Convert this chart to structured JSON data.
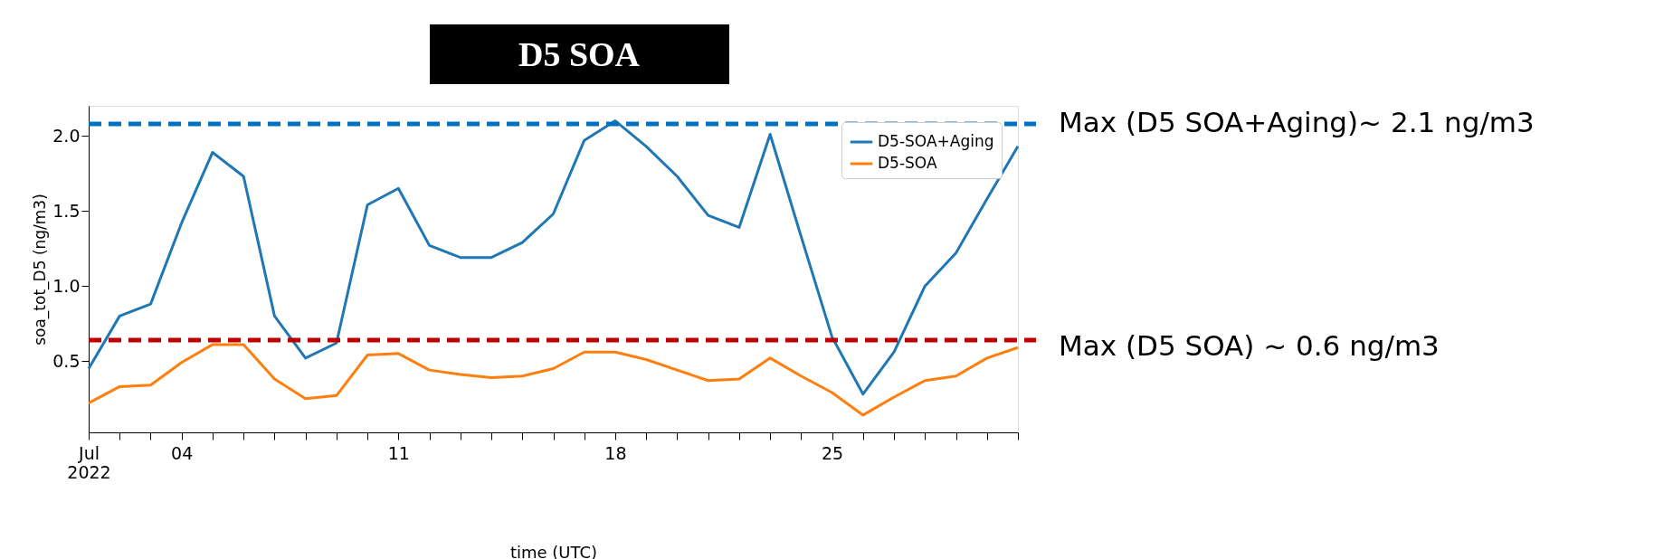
{
  "chart_data": {
    "type": "line",
    "title": "D5 SOA",
    "xlabel": "time (UTC)",
    "ylabel": "soa_tot_D5 (ng/m3)",
    "x": [
      "2022-07-01",
      "2022-07-02",
      "2022-07-03",
      "2022-07-04",
      "2022-07-05",
      "2022-07-06",
      "2022-07-07",
      "2022-07-08",
      "2022-07-09",
      "2022-07-10",
      "2022-07-11",
      "2022-07-12",
      "2022-07-13",
      "2022-07-14",
      "2022-07-15",
      "2022-07-16",
      "2022-07-17",
      "2022-07-18",
      "2022-07-19",
      "2022-07-20",
      "2022-07-21",
      "2022-07-22",
      "2022-07-23",
      "2022-07-24",
      "2022-07-25",
      "2022-07-26",
      "2022-07-27",
      "2022-07-28",
      "2022-07-29",
      "2022-07-30",
      "2022-07-31"
    ],
    "series": [
      {
        "name": "D5-SOA+Aging",
        "color": "#1f77b4",
        "values": [
          0.45,
          0.8,
          0.88,
          1.42,
          1.89,
          1.73,
          0.8,
          0.52,
          0.62,
          1.54,
          1.65,
          1.27,
          1.19,
          1.19,
          1.29,
          1.48,
          1.97,
          2.1,
          1.93,
          1.73,
          1.47,
          1.39,
          2.01,
          1.33,
          0.66,
          0.28,
          0.56,
          1.0,
          1.22,
          1.58,
          1.93
        ]
      },
      {
        "name": "D5-SOA",
        "color": "#ff7f0e",
        "values": [
          0.22,
          0.33,
          0.34,
          0.49,
          0.61,
          0.61,
          0.38,
          0.25,
          0.27,
          0.54,
          0.55,
          0.44,
          0.41,
          0.39,
          0.4,
          0.45,
          0.56,
          0.56,
          0.51,
          0.44,
          0.37,
          0.38,
          0.52,
          0.4,
          0.29,
          0.14,
          0.26,
          0.37,
          0.4,
          0.52,
          0.59
        ]
      }
    ],
    "xlim": [
      "2022-07-01",
      "2022-07-31"
    ],
    "xticks": [
      {
        "value": "2022-07-01",
        "label": "Jul\n2022"
      },
      {
        "value": "2022-07-02",
        "label": null
      },
      {
        "value": "2022-07-03",
        "label": null
      },
      {
        "value": "2022-07-04",
        "label": "04"
      },
      {
        "value": "2022-07-05",
        "label": null
      },
      {
        "value": "2022-07-06",
        "label": null
      },
      {
        "value": "2022-07-07",
        "label": null
      },
      {
        "value": "2022-07-08",
        "label": null
      },
      {
        "value": "2022-07-09",
        "label": null
      },
      {
        "value": "2022-07-10",
        "label": null
      },
      {
        "value": "2022-07-11",
        "label": "11"
      },
      {
        "value": "2022-07-12",
        "label": null
      },
      {
        "value": "2022-07-13",
        "label": null
      },
      {
        "value": "2022-07-14",
        "label": null
      },
      {
        "value": "2022-07-15",
        "label": null
      },
      {
        "value": "2022-07-16",
        "label": null
      },
      {
        "value": "2022-07-17",
        "label": null
      },
      {
        "value": "2022-07-18",
        "label": "18"
      },
      {
        "value": "2022-07-19",
        "label": null
      },
      {
        "value": "2022-07-20",
        "label": null
      },
      {
        "value": "2022-07-21",
        "label": null
      },
      {
        "value": "2022-07-22",
        "label": null
      },
      {
        "value": "2022-07-23",
        "label": null
      },
      {
        "value": "2022-07-24",
        "label": null
      },
      {
        "value": "2022-07-25",
        "label": "25"
      },
      {
        "value": "2022-07-26",
        "label": null
      },
      {
        "value": "2022-07-27",
        "label": null
      },
      {
        "value": "2022-07-28",
        "label": null
      },
      {
        "value": "2022-07-29",
        "label": null
      },
      {
        "value": "2022-07-30",
        "label": null
      },
      {
        "value": "2022-07-31",
        "label": null
      }
    ],
    "ylim": [
      0.025,
      2.2
    ],
    "yticks": [
      {
        "value": 0.5,
        "label": "0.5"
      },
      {
        "value": 1,
        "label": "1.0"
      },
      {
        "value": 1.5,
        "label": "1.5"
      },
      {
        "value": 2,
        "label": "2.0"
      }
    ],
    "ref_lines": [
      {
        "axis": "y",
        "value": 2.08,
        "label": "Max (D5 SOA+Aging)~ 2.1 ng/m3",
        "color": "#0070c0",
        "line_style": "dashed"
      },
      {
        "axis": "y",
        "value": 0.64,
        "label": "Max (D5 SOA) ~ 0.6 ng/m3",
        "color": "#c00000",
        "line_style": "dashed"
      }
    ],
    "legend": "top right",
    "grid": false,
    "line_style": "solid",
    "marker": "none"
  }
}
